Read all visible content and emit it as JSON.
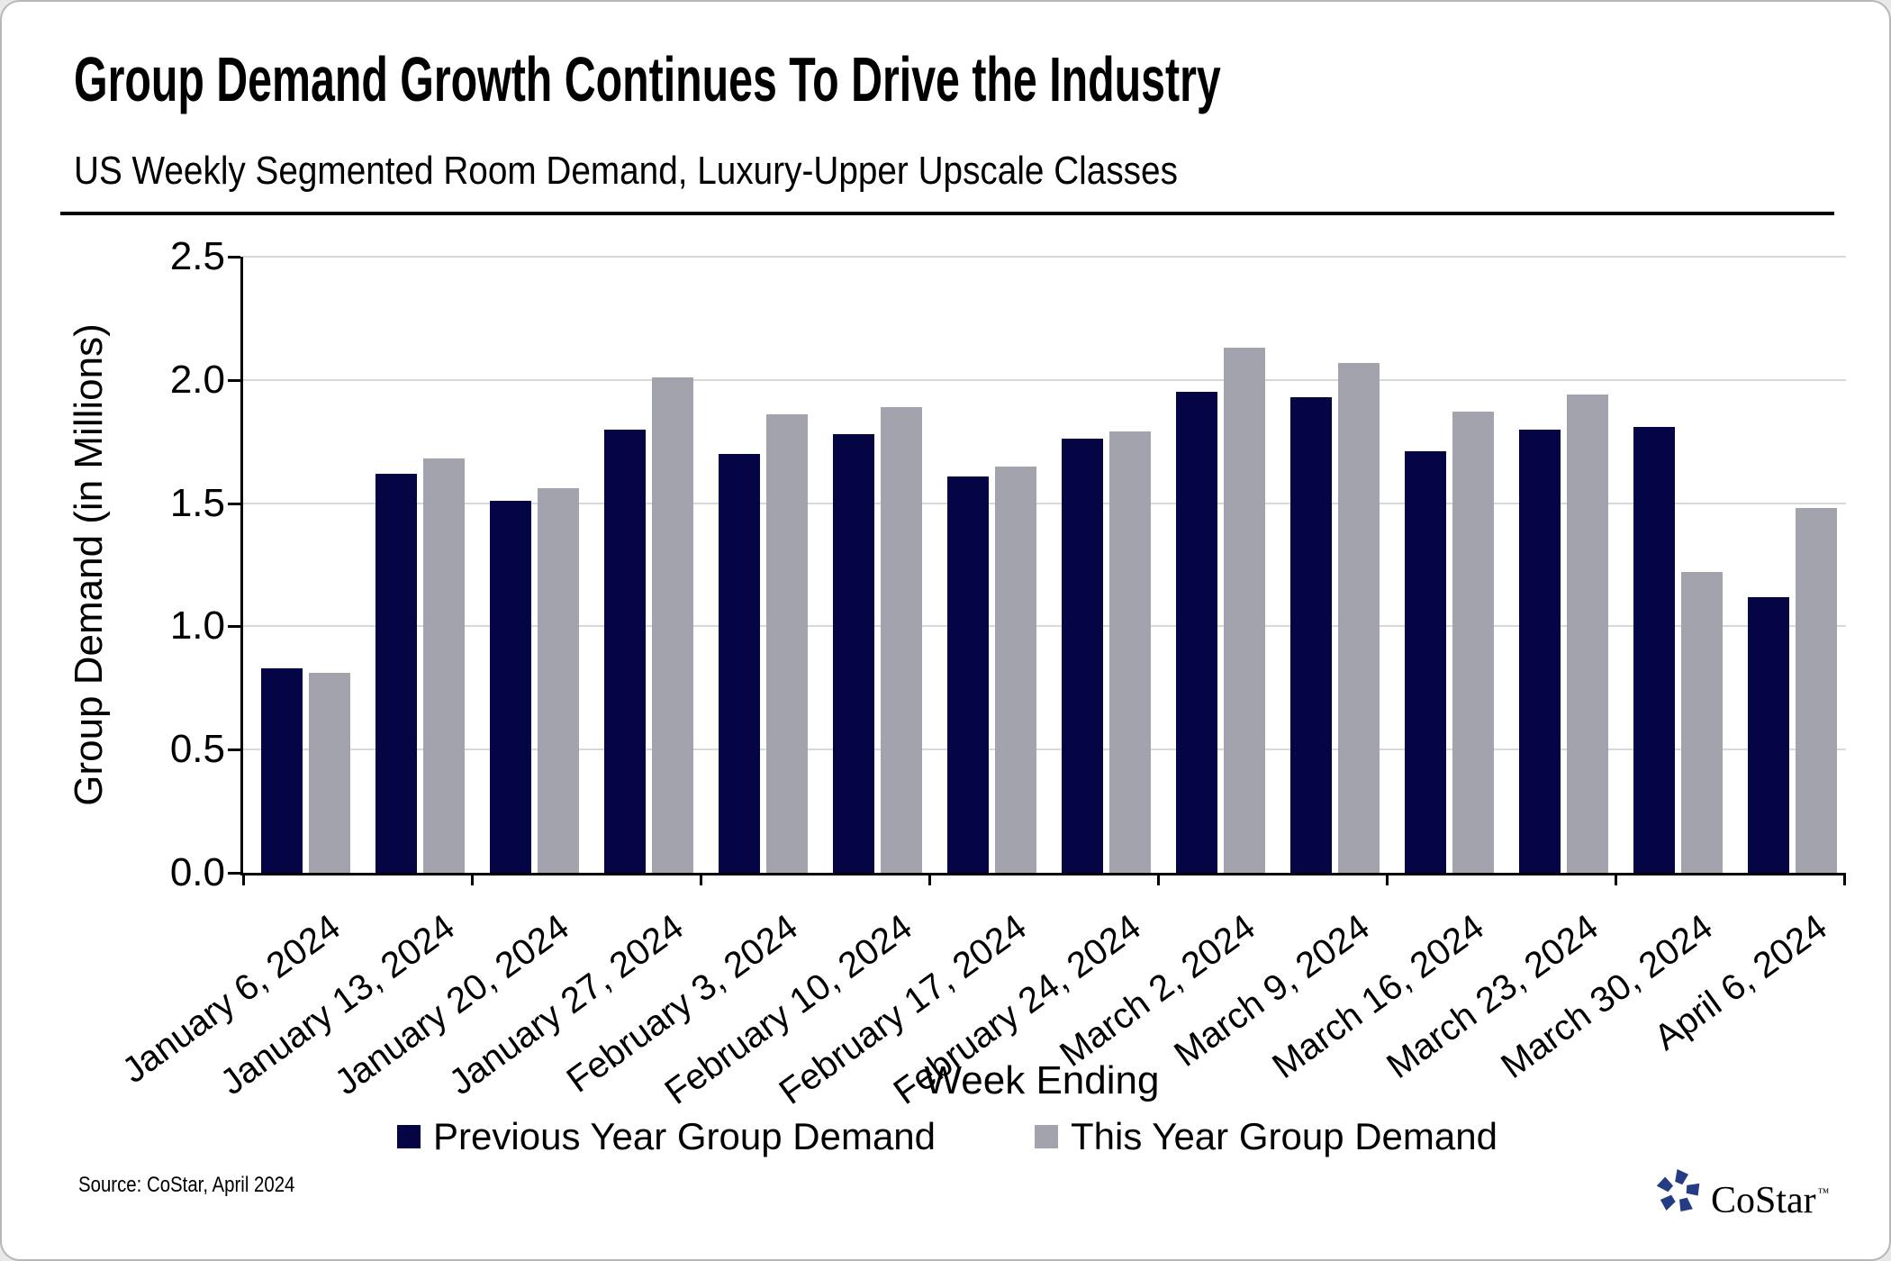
{
  "header": {
    "title": "Group Demand Growth Continues To Drive the Industry",
    "subtitle": "US Weekly Segmented Room Demand, Luxury-Upper Upscale Classes"
  },
  "chart_data": {
    "type": "bar",
    "categories": [
      "January 6, 2024",
      "January 13, 2024",
      "January 20, 2024",
      "January 27, 2024",
      "February 3, 2024",
      "February 10, 2024",
      "February 17, 2024",
      "February 24, 2024",
      "March 2, 2024",
      "March 9, 2024",
      "March 16, 2024",
      "March 23, 2024",
      "March 30, 2024",
      "April 6, 2024"
    ],
    "series": [
      {
        "name": "Previous Year Group Demand",
        "values": [
          0.83,
          1.62,
          1.51,
          1.8,
          1.7,
          1.78,
          1.61,
          1.76,
          1.95,
          1.93,
          1.71,
          1.8,
          1.81,
          1.12
        ]
      },
      {
        "name": "This Year Group Demand",
        "values": [
          0.81,
          1.68,
          1.56,
          2.01,
          1.86,
          1.89,
          1.65,
          1.79,
          2.13,
          2.07,
          1.87,
          1.94,
          1.22,
          1.48
        ]
      }
    ],
    "title": "Group Demand Growth Continues To Drive the Industry",
    "xlabel": "Week Ending",
    "ylabel": "Group Demand (in Millions)",
    "ylim": [
      0,
      2.5
    ],
    "yticks": [
      0.0,
      0.5,
      1.0,
      1.5,
      2.0,
      2.5
    ],
    "ytick_labels": [
      "0.0",
      "0.5",
      "1.0",
      "1.5",
      "2.0",
      "2.5"
    ],
    "grid": "horizontal",
    "legend_position": "bottom",
    "xticks_every_n_categories": 2
  },
  "legend": {
    "items": [
      {
        "label": "Previous Year Group Demand",
        "color": "#050545"
      },
      {
        "label": "This Year Group Demand",
        "color": "#a3a3ad"
      }
    ]
  },
  "footer": {
    "source": "Source: CoStar, April 2024"
  },
  "logo": {
    "text": "CoStar",
    "tm": "™"
  },
  "colors": {
    "bar_previous": "#050545",
    "bar_current": "#a3a3ad",
    "gridline": "#d8d8d8",
    "axis": "#000000",
    "logo_blue": "#253c85",
    "text": "#000000"
  }
}
